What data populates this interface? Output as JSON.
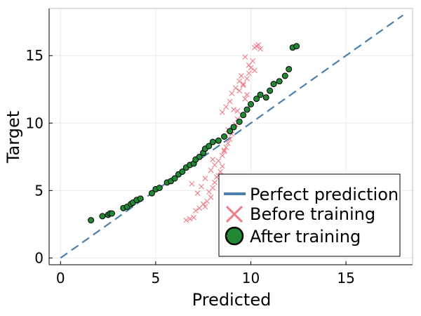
{
  "chart_data": {
    "type": "scatter",
    "title": "",
    "xlabel": "Predicted",
    "ylabel": "Target",
    "xlim": [
      -0.6,
      18.5
    ],
    "ylim": [
      -0.5,
      18.5
    ],
    "xticks": [
      0,
      5,
      10,
      15
    ],
    "yticks": [
      0,
      5,
      10,
      15
    ],
    "xtick_labels": [
      "0",
      "5",
      "10",
      "15"
    ],
    "ytick_labels": [
      "0",
      "5",
      "10",
      "15"
    ],
    "grid": true,
    "legend_position": "bottom-right",
    "series": [
      {
        "name": "Perfect prediction",
        "kind": "line",
        "style": "dashed",
        "color": "#4a7fb0",
        "x": [
          0,
          18
        ],
        "y": [
          0,
          18
        ]
      },
      {
        "name": "Before training",
        "kind": "scatter",
        "marker": "x",
        "color": "#f07a85",
        "x": [
          6.6,
          6.8,
          7.0,
          7.1,
          7.3,
          7.5,
          7.6,
          7.7,
          7.9,
          7.4,
          7.2,
          6.9,
          7.8,
          8.0,
          8.1,
          8.2,
          8.3,
          8.4,
          8.5,
          7.6,
          7.9,
          8.1,
          8.0,
          8.3,
          8.5,
          8.6,
          8.7,
          8.8,
          8.9,
          9.0,
          8.6,
          8.8,
          9.1,
          9.2,
          9.3,
          8.5,
          8.7,
          8.9,
          9.0,
          9.2,
          9.4,
          9.5,
          9.6,
          9.7,
          9.8,
          9.1,
          9.3,
          9.4,
          9.6,
          9.8,
          9.9,
          10.0,
          10.1,
          10.2,
          10.3,
          10.4,
          10.5,
          9.7,
          9.9,
          10.2
        ],
        "y": [
          2.8,
          2.9,
          3.0,
          3.5,
          3.7,
          4.0,
          3.8,
          4.2,
          4.5,
          5.3,
          4.8,
          5.5,
          4.9,
          5.2,
          5.6,
          6.0,
          6.1,
          6.4,
          6.8,
          5.9,
          6.5,
          6.9,
          7.3,
          7.2,
          7.6,
          7.9,
          8.2,
          8.5,
          8.8,
          9.2,
          8.0,
          9.5,
          9.7,
          9.9,
          10.3,
          10.8,
          11.2,
          11.6,
          12.2,
          12.6,
          13.1,
          13.5,
          12.9,
          11.8,
          12.1,
          11.0,
          10.9,
          12.4,
          12.8,
          13.3,
          13.7,
          14.1,
          14.6,
          15.6,
          15.7,
          15.8,
          15.5,
          14.9,
          14.3,
          13.9
        ],
        "x_note": "",
        "y_note": ""
      },
      {
        "name": "After training",
        "kind": "scatter",
        "marker": "circle",
        "color": "#228833",
        "x": [
          1.6,
          2.2,
          2.5,
          2.6,
          2.7,
          3.3,
          3.5,
          3.7,
          3.8,
          4.0,
          4.2,
          4.8,
          5.0,
          5.2,
          5.6,
          5.8,
          6.0,
          6.2,
          6.4,
          6.6,
          6.8,
          7.0,
          7.1,
          7.3,
          7.5,
          7.6,
          7.8,
          8.0,
          8.3,
          8.6,
          8.9,
          9.1,
          9.4,
          9.6,
          9.8,
          10.0,
          10.3,
          10.5,
          10.8,
          11.0,
          11.2,
          11.5,
          11.8,
          12.0,
          12.2,
          12.4
        ],
        "y": [
          2.8,
          3.1,
          3.2,
          3.3,
          3.3,
          3.7,
          3.8,
          4.0,
          4.1,
          4.3,
          4.4,
          4.8,
          5.1,
          5.2,
          5.6,
          5.7,
          5.9,
          6.2,
          6.4,
          6.7,
          6.9,
          7.0,
          7.3,
          7.5,
          7.8,
          8.1,
          8.3,
          8.6,
          8.7,
          9.0,
          9.4,
          9.7,
          10.1,
          10.6,
          11.0,
          11.4,
          11.8,
          12.1,
          11.9,
          12.4,
          12.9,
          13.1,
          13.5,
          14.0,
          15.6,
          15.7
        ]
      }
    ]
  }
}
